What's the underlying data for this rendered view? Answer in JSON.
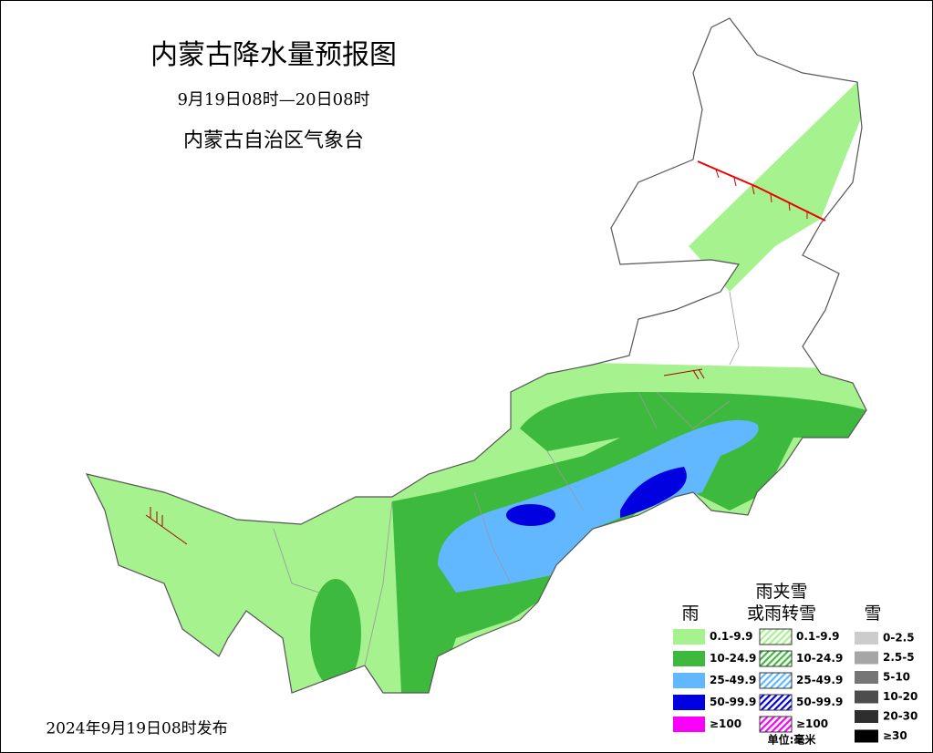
{
  "header": {
    "title": "内蒙古降水量预报图",
    "period": "9月19日08时—20日08时",
    "issuer": "内蒙古自治区气象台"
  },
  "release": "2024年9月19日08时发布",
  "legend": {
    "rain": {
      "title": "雨",
      "items": [
        {
          "label": "0.1-9.9",
          "color": "#a6f28f"
        },
        {
          "label": "10-24.9",
          "color": "#3dba3d"
        },
        {
          "label": "25-49.9",
          "color": "#61b8ff"
        },
        {
          "label": "50-99.9",
          "color": "#0000e1"
        },
        {
          "label": "≥100",
          "color": "#fa00fa"
        }
      ]
    },
    "mixed": {
      "title": [
        "雨夹雪",
        "或雨转雪"
      ],
      "items": [
        {
          "label": "0.1-9.9",
          "color": "#a6f28f"
        },
        {
          "label": "10-24.9",
          "color": "#3dba3d"
        },
        {
          "label": "25-49.9",
          "color": "#61b8ff"
        },
        {
          "label": "50-99.9",
          "color": "#0000e1"
        },
        {
          "label": "≥100",
          "color": "#fa00fa"
        }
      ]
    },
    "snow": {
      "title": "雪",
      "items": [
        {
          "label": "0-2.5",
          "color": "#cccccc"
        },
        {
          "label": "2.5-5",
          "color": "#a6a6a6"
        },
        {
          "label": "5-10",
          "color": "#767676"
        },
        {
          "label": "10-20",
          "color": "#4d4d4d"
        },
        {
          "label": "20-30",
          "color": "#2e2e2e"
        },
        {
          "label": "≥30",
          "color": "#000000"
        }
      ]
    },
    "unit": "单位:毫米"
  }
}
